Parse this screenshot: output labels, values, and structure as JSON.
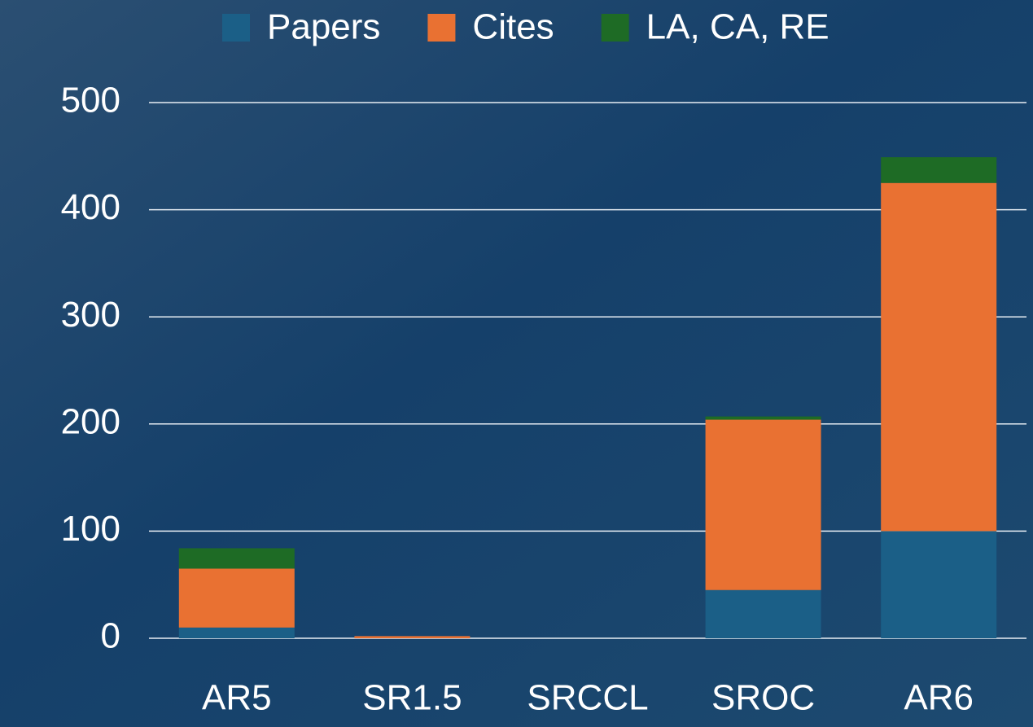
{
  "chart_data": {
    "type": "stacked-bar",
    "categories": [
      "AR5",
      "SR1.5",
      "SRCCL",
      "SROC",
      "AR6"
    ],
    "series": [
      {
        "name": "Papers",
        "color": "#1b5f87",
        "values": [
          10,
          0,
          0,
          45,
          100
        ]
      },
      {
        "name": "Cites",
        "color": "#e97132",
        "values": [
          55,
          2,
          0,
          159,
          325
        ]
      },
      {
        "name": "LA, CA, RE",
        "color": "#1e6b25",
        "values": [
          19,
          0,
          0,
          3,
          24
        ]
      }
    ],
    "ylim": [
      0,
      500
    ],
    "yticks": [
      0,
      100,
      200,
      300,
      400,
      500
    ],
    "grid": true,
    "legend": "top"
  }
}
